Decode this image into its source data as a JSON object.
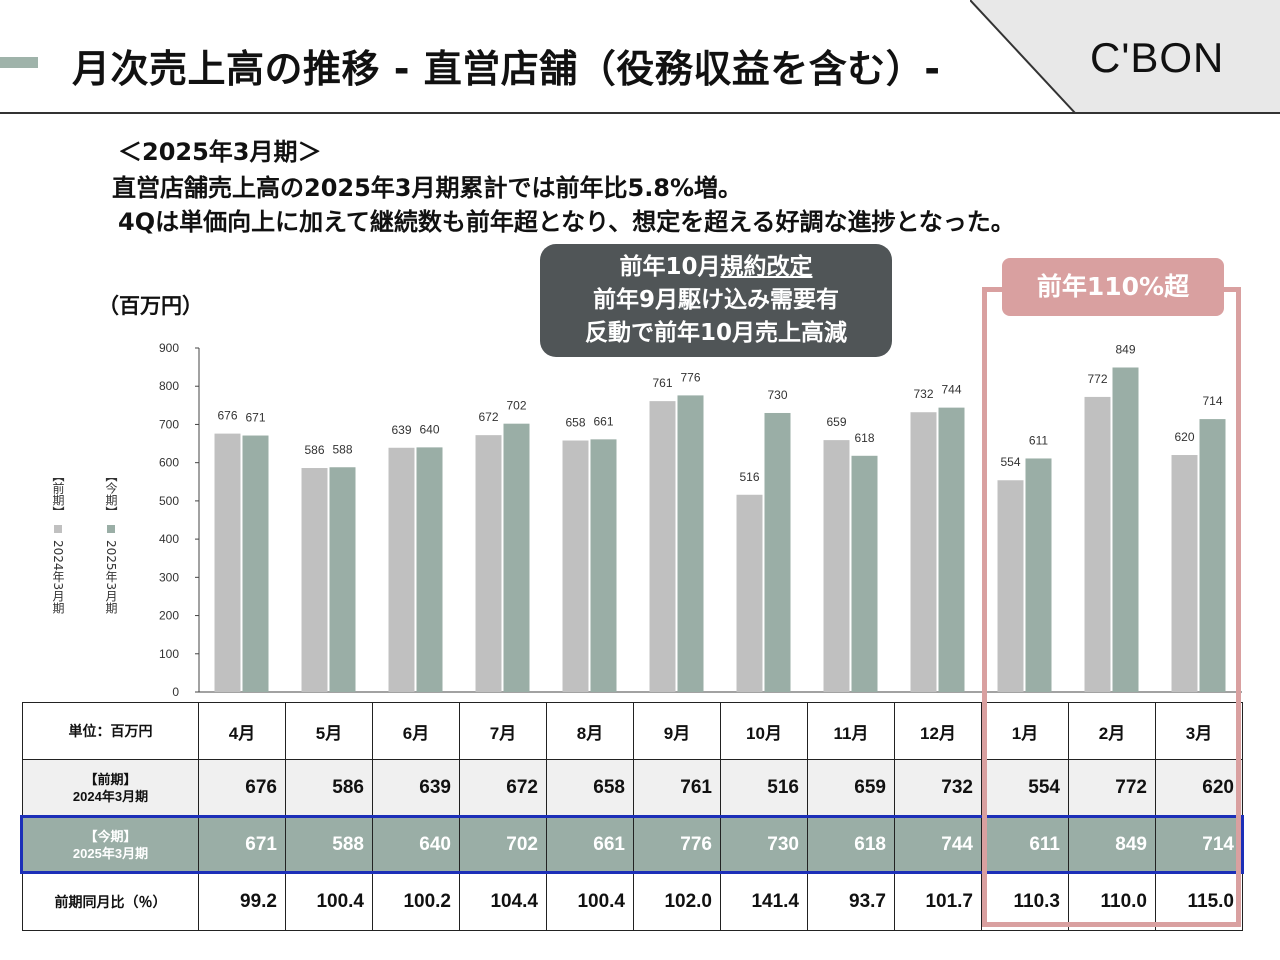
{
  "header": {
    "title": "月次売上高の推移 - 直営店舗（役務収益を含む）-",
    "logo": "C'BON"
  },
  "summary": {
    "period": "＜2025年3月期＞",
    "line1": "直営店舗売上高の2025年3月期累計では前年比5.8%増。",
    "line2": "4Qは単価向上に加えて継続数も前年超となり、想定を超える好調な進捗となった。"
  },
  "callout": {
    "line1_a": "前年10月",
    "line1_b": "規約改定",
    "line2": "前年9月駆け込み需要有",
    "line3": "反動で前年10月売上高減"
  },
  "highlight": {
    "label": "前年110%超"
  },
  "unit_label": "（百万円）",
  "legend": {
    "prev": "【前期】 2024年3月期",
    "cur": "【今期】 2025年3月期"
  },
  "colors": {
    "prev": "#c0c0c0",
    "cur": "#9aaea6",
    "highlight": "#d9a0a0",
    "callout": "#505557",
    "cur_frame": "#1c2fb8"
  },
  "chart_data": {
    "type": "bar",
    "categories": [
      "4月",
      "5月",
      "6月",
      "7月",
      "8月",
      "9月",
      "10月",
      "11月",
      "12月",
      "1月",
      "2月",
      "3月"
    ],
    "series": [
      {
        "name": "【前期】2024年3月期",
        "values": [
          676,
          586,
          639,
          672,
          658,
          761,
          516,
          659,
          732,
          554,
          772,
          620
        ]
      },
      {
        "name": "【今期】2025年3月期",
        "values": [
          671,
          588,
          640,
          702,
          661,
          776,
          730,
          618,
          744,
          611,
          849,
          714
        ]
      }
    ],
    "ylabel": "（百万円）",
    "ylim": [
      0,
      900
    ],
    "yticks": [
      0,
      100,
      200,
      300,
      400,
      500,
      600,
      700,
      800,
      900
    ],
    "grid": false,
    "legend_position": "left"
  },
  "table": {
    "header_label": "単位：百万円",
    "months": [
      "4月",
      "5月",
      "6月",
      "7月",
      "8月",
      "9月",
      "10月",
      "11月",
      "12月",
      "1月",
      "2月",
      "3月"
    ],
    "prev_label_1": "【前期】",
    "prev_label_2": "2024年3月期",
    "cur_label_1": "【今期】",
    "cur_label_2": "2025年3月期",
    "prev": [
      "676",
      "586",
      "639",
      "672",
      "658",
      "761",
      "516",
      "659",
      "732",
      "554",
      "772",
      "620"
    ],
    "cur": [
      "671",
      "588",
      "640",
      "702",
      "661",
      "776",
      "730",
      "618",
      "744",
      "611",
      "849",
      "714"
    ],
    "ratio_label": "前期同月比（％）",
    "ratio": [
      "99.2",
      "100.4",
      "100.2",
      "104.4",
      "100.4",
      "102.0",
      "141.4",
      "93.7",
      "101.7",
      "110.3",
      "110.0",
      "115.0"
    ]
  }
}
